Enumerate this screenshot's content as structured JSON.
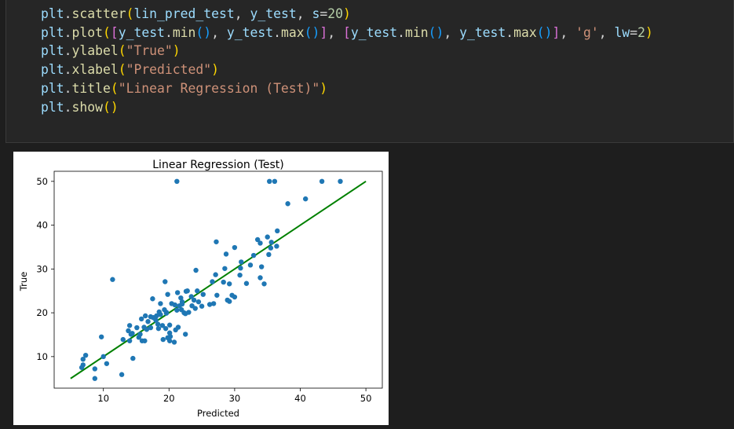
{
  "code_cell": {
    "lines": [
      "plt.scatter(lin_pred_test, y_test, s=20)",
      "plt.plot([y_test.min(), y_test.max()], [y_test.min(), y_test.max()], 'g', lw=2)",
      "plt.ylabel(\"True\")",
      "plt.xlabel(\"Predicted\")",
      "plt.title(\"Linear Regression (Test)\")",
      "plt.show()"
    ]
  },
  "chart_data": {
    "type": "scatter",
    "title": "Linear Regression (Test)",
    "xlabel": "Predicted",
    "ylabel": "True",
    "xlim": [
      2.5,
      52.5
    ],
    "ylim": [
      2.8,
      52.3
    ],
    "xticks": [
      10,
      20,
      30,
      40,
      50
    ],
    "yticks": [
      10,
      20,
      30,
      40,
      50
    ],
    "grid": false,
    "colors": {
      "points": "#1f77b4",
      "line": "#008000"
    },
    "series": [
      {
        "name": "",
        "points": [
          [
            21.2,
            50.0
          ],
          [
            35.3,
            50.0
          ],
          [
            36.1,
            50.0
          ],
          [
            43.3,
            50.0
          ],
          [
            46.1,
            50.0
          ],
          [
            40.8,
            46.0
          ],
          [
            38.1,
            44.9
          ],
          [
            36.5,
            38.7
          ],
          [
            35.0,
            37.3
          ],
          [
            35.6,
            36.1
          ],
          [
            36.4,
            35.2
          ],
          [
            33.5,
            36.7
          ],
          [
            33.9,
            35.9
          ],
          [
            27.2,
            36.2
          ],
          [
            28.7,
            33.4
          ],
          [
            30.0,
            34.9
          ],
          [
            35.5,
            34.8
          ],
          [
            35.2,
            33.3
          ],
          [
            32.9,
            33.1
          ],
          [
            31.0,
            31.6
          ],
          [
            32.4,
            30.9
          ],
          [
            34.1,
            30.5
          ],
          [
            33.9,
            28.0
          ],
          [
            30.9,
            30.2
          ],
          [
            28.5,
            30.1
          ],
          [
            24.1,
            29.7
          ],
          [
            30.8,
            28.6
          ],
          [
            27.1,
            28.7
          ],
          [
            28.3,
            27.0
          ],
          [
            26.6,
            27.1
          ],
          [
            29.2,
            26.6
          ],
          [
            31.8,
            26.7
          ],
          [
            34.5,
            26.6
          ],
          [
            11.4,
            27.6
          ],
          [
            19.4,
            27.1
          ],
          [
            29.6,
            24.0
          ],
          [
            30.0,
            23.6
          ],
          [
            29.2,
            22.6
          ],
          [
            28.9,
            22.9
          ],
          [
            27.3,
            24.0
          ],
          [
            25.2,
            24.2
          ],
          [
            26.8,
            22.1
          ],
          [
            26.2,
            21.9
          ],
          [
            25.0,
            21.5
          ],
          [
            24.0,
            21.0
          ],
          [
            23.5,
            21.6
          ],
          [
            24.5,
            22.5
          ],
          [
            23.8,
            22.9
          ],
          [
            23.4,
            23.7
          ],
          [
            22.6,
            24.9
          ],
          [
            22.8,
            25.0
          ],
          [
            24.3,
            25.0
          ],
          [
            21.3,
            24.6
          ],
          [
            21.8,
            23.4
          ],
          [
            22.0,
            22.5
          ],
          [
            21.9,
            20.7
          ],
          [
            21.2,
            20.6
          ],
          [
            22.3,
            20.0
          ],
          [
            22.5,
            19.8
          ],
          [
            23.0,
            20.1
          ],
          [
            22.0,
            22.0
          ],
          [
            21.6,
            21.6
          ],
          [
            20.9,
            21.8
          ],
          [
            20.4,
            22.1
          ],
          [
            19.8,
            24.2
          ],
          [
            17.5,
            23.2
          ],
          [
            18.7,
            22.1
          ],
          [
            18.5,
            20.2
          ],
          [
            19.6,
            20.1
          ],
          [
            19.3,
            20.7
          ],
          [
            19.6,
            19.9
          ],
          [
            18.7,
            19.6
          ],
          [
            18.1,
            19.3
          ],
          [
            17.6,
            18.9
          ],
          [
            18.0,
            18.3
          ],
          [
            17.2,
            19.1
          ],
          [
            16.4,
            19.3
          ],
          [
            15.8,
            18.6
          ],
          [
            16.8,
            18.0
          ],
          [
            16.2,
            16.7
          ],
          [
            17.2,
            16.6
          ],
          [
            16.6,
            16.2
          ],
          [
            18.3,
            17.4
          ],
          [
            19.0,
            17.1
          ],
          [
            18.4,
            16.4
          ],
          [
            19.5,
            16.4
          ],
          [
            20.1,
            17.2
          ],
          [
            21.0,
            16.1
          ],
          [
            20.1,
            15.4
          ],
          [
            20.2,
            14.6
          ],
          [
            19.8,
            14.3
          ],
          [
            19.1,
            13.9
          ],
          [
            20.1,
            13.6
          ],
          [
            20.8,
            13.3
          ],
          [
            21.4,
            16.7
          ],
          [
            22.5,
            15.1
          ],
          [
            15.6,
            15.1
          ],
          [
            15.1,
            16.6
          ],
          [
            14.0,
            17.1
          ],
          [
            13.8,
            15.9
          ],
          [
            14.2,
            15.1
          ],
          [
            14.4,
            15.3
          ],
          [
            15.4,
            14.4
          ],
          [
            15.9,
            13.6
          ],
          [
            16.3,
            13.6
          ],
          [
            14.0,
            13.6
          ],
          [
            13.0,
            13.9
          ],
          [
            14.5,
            9.6
          ],
          [
            9.7,
            14.5
          ],
          [
            12.8,
            5.9
          ],
          [
            10.0,
            10.0
          ],
          [
            10.5,
            8.4
          ],
          [
            8.7,
            7.2
          ],
          [
            8.7,
            5.0
          ],
          [
            7.3,
            10.3
          ],
          [
            6.9,
            9.4
          ],
          [
            6.9,
            8.1
          ],
          [
            6.7,
            7.5
          ]
        ]
      }
    ],
    "reference_line": {
      "x": [
        5.0,
        50.0
      ],
      "y": [
        5.0,
        50.0
      ]
    }
  }
}
